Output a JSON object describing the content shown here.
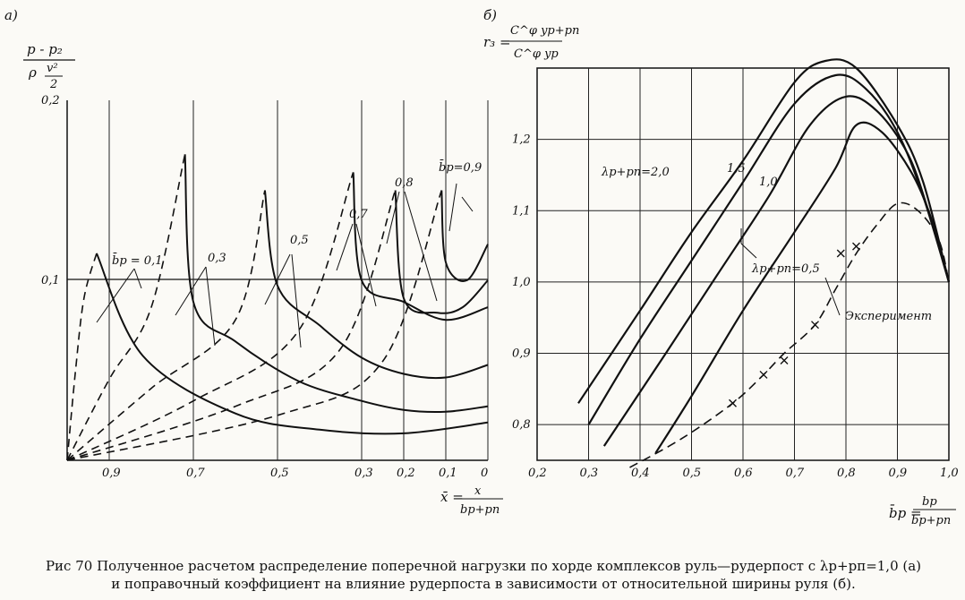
{
  "caption": {
    "line1": "Рис 70 Полученное расчетом распределение поперечной нагрузки по хорде комплексов руль—рудерпост с λр+рп=1,0 (а)",
    "line2": "и поправочный коэффициент на влияние рудерпоста в зависимости от относительной ширины руля (б)."
  },
  "chart_data": [
    {
      "panel": "а)",
      "type": "line",
      "ylabel": "(p - p₂) / (ρ v²/2)",
      "xlabel": "x̄ = x / b_р+рп",
      "x_ticks": [
        "0,9",
        "0,7",
        "0,5",
        "0,3",
        "0,2",
        "0,1",
        "0"
      ],
      "y_ticks": [
        "0,1",
        "0,2"
      ],
      "ylim": [
        0,
        0.2
      ],
      "xlim": [
        1.0,
        0.0
      ],
      "x_reversed": true,
      "grid": true,
      "labels": [
        "b̄р = 0,1",
        "0,3",
        "0,5",
        "0,7",
        "0,8",
        "b̄р = 0,9"
      ],
      "series": [
        {
          "name": "b̄р = 0,1",
          "dashed": [
            [
              1.0,
              0
            ],
            [
              0.98,
              0.05
            ],
            [
              0.96,
              0.09
            ],
            [
              0.93,
              0.115
            ]
          ],
          "solid": [
            [
              0.93,
              0.115
            ],
            [
              0.82,
              0.058
            ],
            [
              0.6,
              0.026
            ],
            [
              0.4,
              0.017
            ],
            [
              0.2,
              0.015
            ],
            [
              0,
              0.021
            ]
          ]
        },
        {
          "name": "0,3",
          "dashed": [
            [
              1.0,
              0
            ],
            [
              0.9,
              0.045
            ],
            [
              0.8,
              0.085
            ],
            [
              0.72,
              0.17
            ]
          ],
          "solid": [
            [
              0.72,
              0.17
            ],
            [
              0.7,
              0.088
            ],
            [
              0.6,
              0.066
            ],
            [
              0.45,
              0.044
            ],
            [
              0.3,
              0.033
            ],
            [
              0.2,
              0.028
            ],
            [
              0.1,
              0.027
            ],
            [
              0,
              0.03
            ]
          ]
        },
        {
          "name": "0,5",
          "dashed": [
            [
              1.0,
              0
            ],
            [
              0.8,
              0.04
            ],
            [
              0.6,
              0.078
            ],
            [
              0.53,
              0.15
            ]
          ],
          "solid": [
            [
              0.53,
              0.15
            ],
            [
              0.5,
              0.097
            ],
            [
              0.4,
              0.075
            ],
            [
              0.3,
              0.057
            ],
            [
              0.2,
              0.048
            ],
            [
              0.1,
              0.046
            ],
            [
              0,
              0.053
            ]
          ]
        },
        {
          "name": "0,7",
          "dashed": [
            [
              1.0,
              0
            ],
            [
              0.7,
              0.033
            ],
            [
              0.45,
              0.072
            ],
            [
              0.32,
              0.16
            ]
          ],
          "solid": [
            [
              0.32,
              0.16
            ],
            [
              0.3,
              0.1
            ],
            [
              0.2,
              0.088
            ],
            [
              0.1,
              0.078
            ],
            [
              0,
              0.085
            ]
          ]
        },
        {
          "name": "0,8",
          "dashed": [
            [
              1.0,
              0
            ],
            [
              0.6,
              0.03
            ],
            [
              0.35,
              0.062
            ],
            [
              0.22,
              0.15
            ]
          ],
          "solid": [
            [
              0.22,
              0.15
            ],
            [
              0.2,
              0.09
            ],
            [
              0.12,
              0.082
            ],
            [
              0.06,
              0.085
            ],
            [
              0,
              0.1
            ]
          ]
        },
        {
          "name": "0,9",
          "dashed": [
            [
              1.0,
              0
            ],
            [
              0.5,
              0.025
            ],
            [
              0.25,
              0.055
            ],
            [
              0.11,
              0.15
            ]
          ],
          "solid": [
            [
              0.11,
              0.15
            ],
            [
              0.1,
              0.11
            ],
            [
              0.05,
              0.1
            ],
            [
              0,
              0.12
            ]
          ]
        }
      ]
    },
    {
      "panel": "б)",
      "type": "line",
      "ylabel": "r₃ = C^φ_yр+рп / C^φ_yр",
      "xlabel": "b̄р = bр / bр+рп",
      "x_ticks": [
        "0,2",
        "0,3",
        "0,4",
        "0,5",
        "0,6",
        "0,7",
        "0,8",
        "0,9",
        "1,0"
      ],
      "y_ticks": [
        "0,8",
        "0,9",
        "1,0",
        "1,1",
        "1,2"
      ],
      "xlim": [
        0.2,
        1.0
      ],
      "ylim": [
        0.75,
        1.3
      ],
      "grid": true,
      "series": [
        {
          "name": "λр+рп=2,0",
          "points": [
            [
              0.28,
              0.83
            ],
            [
              0.4,
              0.96
            ],
            [
              0.5,
              1.07
            ],
            [
              0.6,
              1.17
            ],
            [
              0.7,
              1.28
            ],
            [
              0.76,
              1.31
            ],
            [
              0.82,
              1.3
            ],
            [
              0.9,
              1.22
            ],
            [
              0.95,
              1.14
            ],
            [
              1.0,
              1.0
            ]
          ]
        },
        {
          "name": "1,5",
          "points": [
            [
              0.3,
              0.8
            ],
            [
              0.4,
              0.92
            ],
            [
              0.5,
              1.03
            ],
            [
              0.6,
              1.14
            ],
            [
              0.7,
              1.25
            ],
            [
              0.78,
              1.29
            ],
            [
              0.84,
              1.27
            ],
            [
              0.9,
              1.21
            ],
            [
              0.95,
              1.12
            ],
            [
              1.0,
              1.0
            ]
          ]
        },
        {
          "name": "1,0",
          "points": [
            [
              0.33,
              0.77
            ],
            [
              0.45,
              0.9
            ],
            [
              0.55,
              1.01
            ],
            [
              0.65,
              1.12
            ],
            [
              0.73,
              1.22
            ],
            [
              0.8,
              1.26
            ],
            [
              0.86,
              1.24
            ],
            [
              0.92,
              1.18
            ],
            [
              0.96,
              1.1
            ],
            [
              1.0,
              1.0
            ]
          ]
        },
        {
          "name": "λр+рп=0,5",
          "points": [
            [
              0.43,
              0.76
            ],
            [
              0.5,
              0.84
            ],
            [
              0.6,
              0.96
            ],
            [
              0.7,
              1.07
            ],
            [
              0.78,
              1.16
            ],
            [
              0.82,
              1.22
            ],
            [
              0.87,
              1.21
            ],
            [
              0.93,
              1.15
            ],
            [
              0.97,
              1.08
            ],
            [
              1.0,
              1.0
            ]
          ]
        },
        {
          "name": "Эксперимент",
          "dashed": true,
          "points": [
            [
              0.38,
              0.74
            ],
            [
              0.48,
              0.78
            ],
            [
              0.58,
              0.83
            ],
            [
              0.64,
              0.87
            ],
            [
              0.68,
              0.9
            ],
            [
              0.74,
              0.94
            ],
            [
              0.78,
              0.99
            ],
            [
              0.82,
              1.04
            ],
            [
              0.86,
              1.08
            ],
            [
              0.9,
              1.11
            ],
            [
              0.94,
              1.1
            ],
            [
              0.98,
              1.06
            ],
            [
              1.0,
              1.0
            ]
          ]
        }
      ],
      "markers": [
        [
          0.58,
          0.83
        ],
        [
          0.64,
          0.87
        ],
        [
          0.68,
          0.89
        ],
        [
          0.74,
          0.94
        ],
        [
          0.79,
          1.04
        ],
        [
          0.82,
          1.05
        ]
      ]
    }
  ],
  "texts": {
    "panel_a": "а)",
    "panel_b": "б)",
    "a_ylab_top": "p - p₂",
    "a_ylab_bot_rho": "ρ",
    "a_ylab_bot_v": "v²",
    "a_ylab_bot_2": "2",
    "a_xlab_left": "x̄ =",
    "a_xlab_num": "x",
    "a_xlab_den": "bр+рп",
    "lab_01": "b̄р = 0,1",
    "lab_03": "0,3",
    "lab_05": "0,5",
    "lab_07": "0,7",
    "lab_08": "0,8",
    "lab_09": "b̄р=0,9",
    "b_ylab_left": "r₃ =",
    "b_ylab_num": "C^φ yр+рп",
    "b_ylab_den": "C^φ yр",
    "b_xlab_left": "b̄р =",
    "b_xlab_num": "bр",
    "b_xlab_den": "bр+рп",
    "lab_l20": "λр+рп=2,0",
    "lab_l15": "1,5",
    "lab_l10": "1,0",
    "lab_l05": "λр+рп=0,5",
    "lab_exp": "Эксперимент"
  }
}
